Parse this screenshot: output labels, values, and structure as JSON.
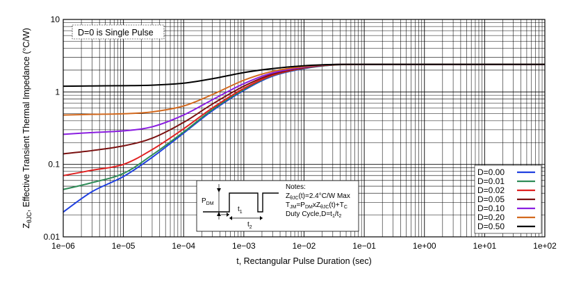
{
  "chart_data": {
    "type": "line",
    "title": "",
    "xlabel": "t, Rectangular Pulse Duration (sec)",
    "ylabel_main": "Z",
    "ylabel_sub": "θJC",
    "ylabel_rest": ", Effective Transient Thermal Impedance (°C/W)",
    "xscale": "log",
    "yscale": "log",
    "xlim": [
      1e-06,
      100
    ],
    "ylim": [
      0.01,
      10
    ],
    "grid": true,
    "x_tick_labels": [
      "1e−06",
      "1e−05",
      "1e−04",
      "1e−03",
      "1e−02",
      "1e−01",
      "1e+00",
      "1e+01",
      "1e+02"
    ],
    "y_tick_labels": [
      "0.01",
      "0.1",
      "1",
      "10"
    ],
    "annotation": "D=0 is Single Pulse",
    "legend_position": "bottom-right",
    "x": [
      1e-06,
      3e-06,
      1e-05,
      3e-05,
      0.0001,
      0.0003,
      0.001,
      0.003,
      0.01,
      0.03,
      0.1,
      1,
      10,
      100
    ],
    "series": [
      {
        "name": "D=0.00",
        "color": "#1f3fe0",
        "values": [
          0.022,
          0.042,
          0.068,
          0.125,
          0.27,
          0.55,
          1.05,
          1.65,
          2.1,
          2.35,
          2.4,
          2.4,
          2.4,
          2.4
        ]
      },
      {
        "name": "D=0.01",
        "color": "#2e8b57",
        "values": [
          0.045,
          0.056,
          0.075,
          0.135,
          0.28,
          0.57,
          1.08,
          1.68,
          2.12,
          2.35,
          2.4,
          2.4,
          2.4,
          2.4
        ]
      },
      {
        "name": "D=0.02",
        "color": "#e02020",
        "values": [
          0.07,
          0.083,
          0.1,
          0.16,
          0.31,
          0.6,
          1.12,
          1.7,
          2.14,
          2.36,
          2.4,
          2.4,
          2.4,
          2.4
        ]
      },
      {
        "name": "D=0.05",
        "color": "#7a1010",
        "values": [
          0.14,
          0.155,
          0.18,
          0.23,
          0.38,
          0.68,
          1.2,
          1.76,
          2.17,
          2.37,
          2.4,
          2.4,
          2.4,
          2.4
        ]
      },
      {
        "name": "D=0.10",
        "color": "#8a1ee0",
        "values": [
          0.26,
          0.275,
          0.29,
          0.33,
          0.48,
          0.78,
          1.3,
          1.83,
          2.2,
          2.38,
          2.4,
          2.4,
          2.4,
          2.4
        ]
      },
      {
        "name": "D=0.20",
        "color": "#d2691e",
        "values": [
          0.48,
          0.49,
          0.5,
          0.53,
          0.64,
          0.92,
          1.45,
          1.92,
          2.24,
          2.38,
          2.4,
          2.4,
          2.4,
          2.4
        ]
      },
      {
        "name": "D=0.50",
        "color": "#000000",
        "values": [
          1.2,
          1.21,
          1.22,
          1.24,
          1.32,
          1.52,
          1.85,
          2.1,
          2.3,
          2.39,
          2.4,
          2.4,
          2.4,
          2.4
        ]
      }
    ],
    "notes": {
      "title": "Notes:",
      "line1_pre": "Z",
      "line1_sub": "θJC",
      "line1_post": "(t)=2.4°C/W Max",
      "line2_a": "T",
      "line2_a_sub": "JM",
      "line2_b": "=P",
      "line2_b_sub": "DM",
      "line2_c": "xZ",
      "line2_c_sub": "θJC",
      "line2_d": "(t)+T",
      "line2_d_sub": "C",
      "line3_pre": "Duty Cycle,D=t",
      "line3_sub1": "1",
      "line3_mid": "/t",
      "line3_sub2": "2"
    },
    "pulse_diagram": {
      "pdm_label": "P",
      "pdm_sub": "DM",
      "t1_label": "t",
      "t1_sub": "1",
      "t2_label": "t",
      "t2_sub": "2"
    }
  }
}
